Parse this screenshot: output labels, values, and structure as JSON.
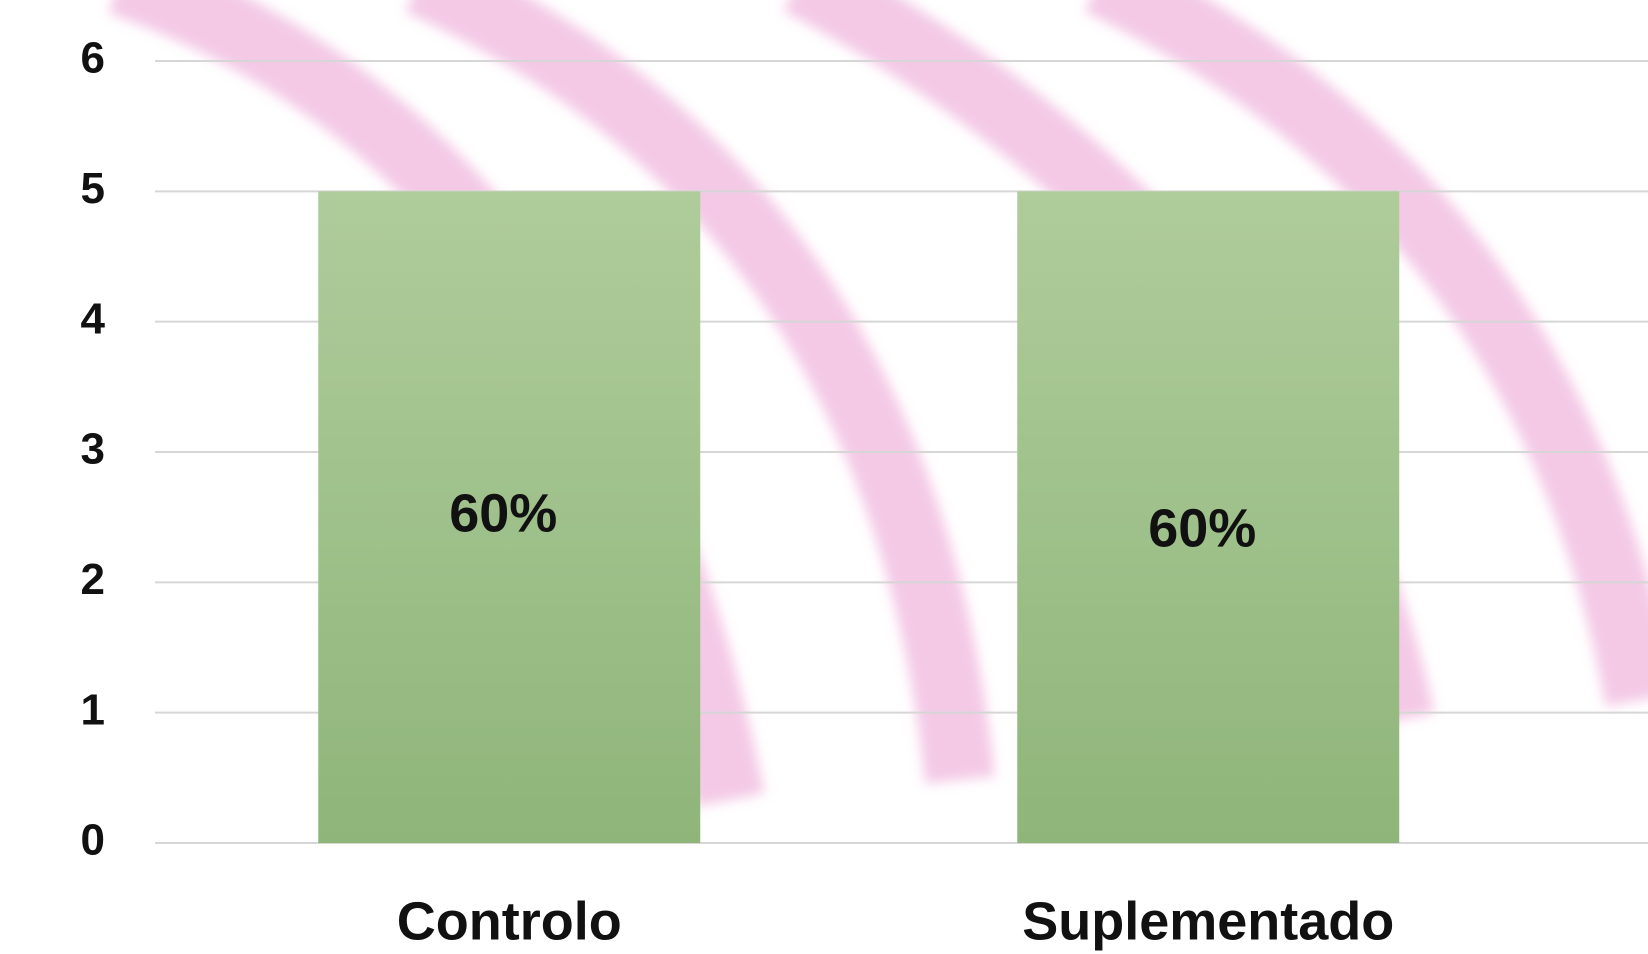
{
  "chart_data": {
    "type": "bar",
    "categories": [
      "Controlo",
      "Suplementado"
    ],
    "values": [
      5,
      5
    ],
    "annotations": [
      "60%",
      "60%"
    ],
    "color": "#9fc288",
    "ylim": [
      0,
      6
    ],
    "yticks": [
      0,
      1,
      2,
      3,
      4,
      5,
      6
    ],
    "grid": true
  }
}
